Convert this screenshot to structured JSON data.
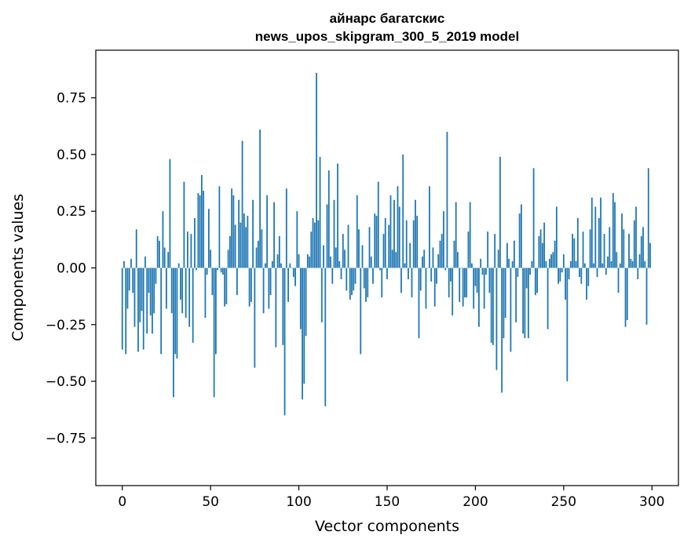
{
  "chart_data": {
    "type": "bar",
    "title": "айнарс багатскис",
    "subtitle": "news_upos_skipgram_300_5_2019 model",
    "xlabel": "Vector components",
    "ylabel": "Components values",
    "xlim": [
      -15,
      315
    ],
    "ylim": [
      -0.96,
      0.96
    ],
    "xticks": [
      0,
      50,
      100,
      150,
      200,
      250,
      300
    ],
    "yticks": [
      -0.75,
      -0.5,
      -0.25,
      0.0,
      0.25,
      0.5,
      0.75
    ],
    "ytick_labels": [
      "−0.75",
      "−0.50",
      "−0.25",
      "0.00",
      "0.25",
      "0.50",
      "0.75"
    ],
    "grid": false,
    "legend": "none",
    "bar_color": "#1f77b4",
    "values": [
      -0.36,
      0.03,
      -0.38,
      -0.18,
      -0.1,
      0.04,
      -0.11,
      -0.26,
      0.17,
      -0.37,
      -0.24,
      -0.19,
      -0.36,
      0.05,
      -0.29,
      -0.11,
      -0.21,
      -0.29,
      -0.2,
      -0.07,
      0.14,
      0.12,
      -0.38,
      0.25,
      0.09,
      -0.18,
      0.07,
      0.48,
      -0.2,
      -0.57,
      -0.38,
      -0.4,
      0.02,
      -0.14,
      -0.2,
      0.38,
      -0.22,
      0.16,
      -0.26,
      0.15,
      -0.33,
      0.22,
      -0.01,
      0.33,
      0.32,
      0.41,
      0.34,
      -0.22,
      -0.03,
      0.26,
      0.08,
      -0.12,
      -0.57,
      -0.38,
      -0.01,
      0.36,
      -0.02,
      -0.03,
      -0.17,
      -0.16,
      0.08,
      0.14,
      0.35,
      0.32,
      0.19,
      -0.12,
      0.3,
      0.2,
      0.56,
      0.24,
      0.18,
      0.23,
      -0.17,
      -0.15,
      0.3,
      -0.44,
      0.09,
      0.12,
      0.61,
      0.17,
      -0.2,
      0.02,
      0.32,
      -0.18,
      -0.12,
      0.03,
      0.29,
      -0.35,
      0.06,
      0.14,
      0.02,
      -0.34,
      -0.65,
      0.35,
      -0.15,
      0.02,
      0.0,
      -0.04,
      -0.08,
      0.25,
      0.06,
      -0.27,
      -0.58,
      -0.51,
      -0.3,
      0.06,
      0.05,
      0.16,
      0.22,
      0.2,
      0.86,
      0.21,
      0.49,
      -0.24,
      0.1,
      -0.61,
      0.28,
      0.43,
      0.05,
      -0.07,
      0.3,
      0.09,
      0.46,
      0.03,
      -0.05,
      0.15,
      0.08,
      -0.1,
      0.19,
      -0.14,
      -0.12,
      -0.1,
      -0.07,
      0.32,
      0.17,
      -0.38,
      0.1,
      -0.09,
      -0.15,
      -0.13,
      0.18,
      0.05,
      -0.07,
      0.24,
      0.23,
      0.38,
      -0.01,
      -0.13,
      0.15,
      0.22,
      -0.05,
      0.19,
      0.32,
      0.08,
      0.3,
      0.07,
      0.36,
      0.27,
      -0.11,
      0.5,
      0.02,
      0.21,
      -0.05,
      0.11,
      -0.13,
      0.21,
      0.3,
      0.23,
      -0.31,
      -0.1,
      0.05,
      0.08,
      -0.18,
      0.0,
      0.36,
      -0.06,
      0.09,
      -0.17,
      -0.07,
      0.06,
      0.12,
      0.15,
      0.25,
      -0.01,
      0.6,
      -0.13,
      -0.06,
      -0.21,
      0.12,
      0.29,
      0.07,
      -0.15,
      0.0,
      -0.17,
      -0.13,
      -0.13,
      0.16,
      0.29,
      0.02,
      -0.18,
      -0.08,
      -0.11,
      -0.26,
      0.04,
      -0.03,
      -0.18,
      -0.03,
      0.16,
      -0.11,
      -0.33,
      -0.34,
      0.15,
      -0.45,
      0.08,
      0.49,
      -0.55,
      -0.31,
      -0.22,
      0.11,
      0.04,
      -0.37,
      0.03,
      0.12,
      -0.24,
      -0.04,
      0.24,
      0.28,
      -0.29,
      -0.31,
      -0.09,
      -0.31,
      -0.03,
      0.03,
      0.44,
      -0.12,
      -0.11,
      0.14,
      0.17,
      0.11,
      0.2,
      0.03,
      -0.27,
      0.04,
      0.06,
      0.07,
      0.12,
      0.27,
      -0.07,
      -0.06,
      -0.02,
      0.06,
      -0.14,
      -0.5,
      -0.05,
      0.03,
      0.15,
      0.13,
      0.03,
      0.22,
      -0.04,
      -0.07,
      0.16,
      0.02,
      -0.14,
      -0.08,
      0.17,
      0.31,
      0.02,
      0.27,
      -0.04,
      0.22,
      0.31,
      0.02,
      0.15,
      -0.03,
      0.05,
      0.18,
      0.03,
      0.33,
      0.29,
      0.07,
      -0.11,
      0.02,
      0.24,
      0.17,
      -0.26,
      -0.23,
      0.15,
      0.04,
      0.03,
      0.21,
      0.27,
      -0.05,
      0.06,
      0.14,
      0.18,
      0.03,
      -0.25,
      0.44,
      0.11
    ]
  }
}
